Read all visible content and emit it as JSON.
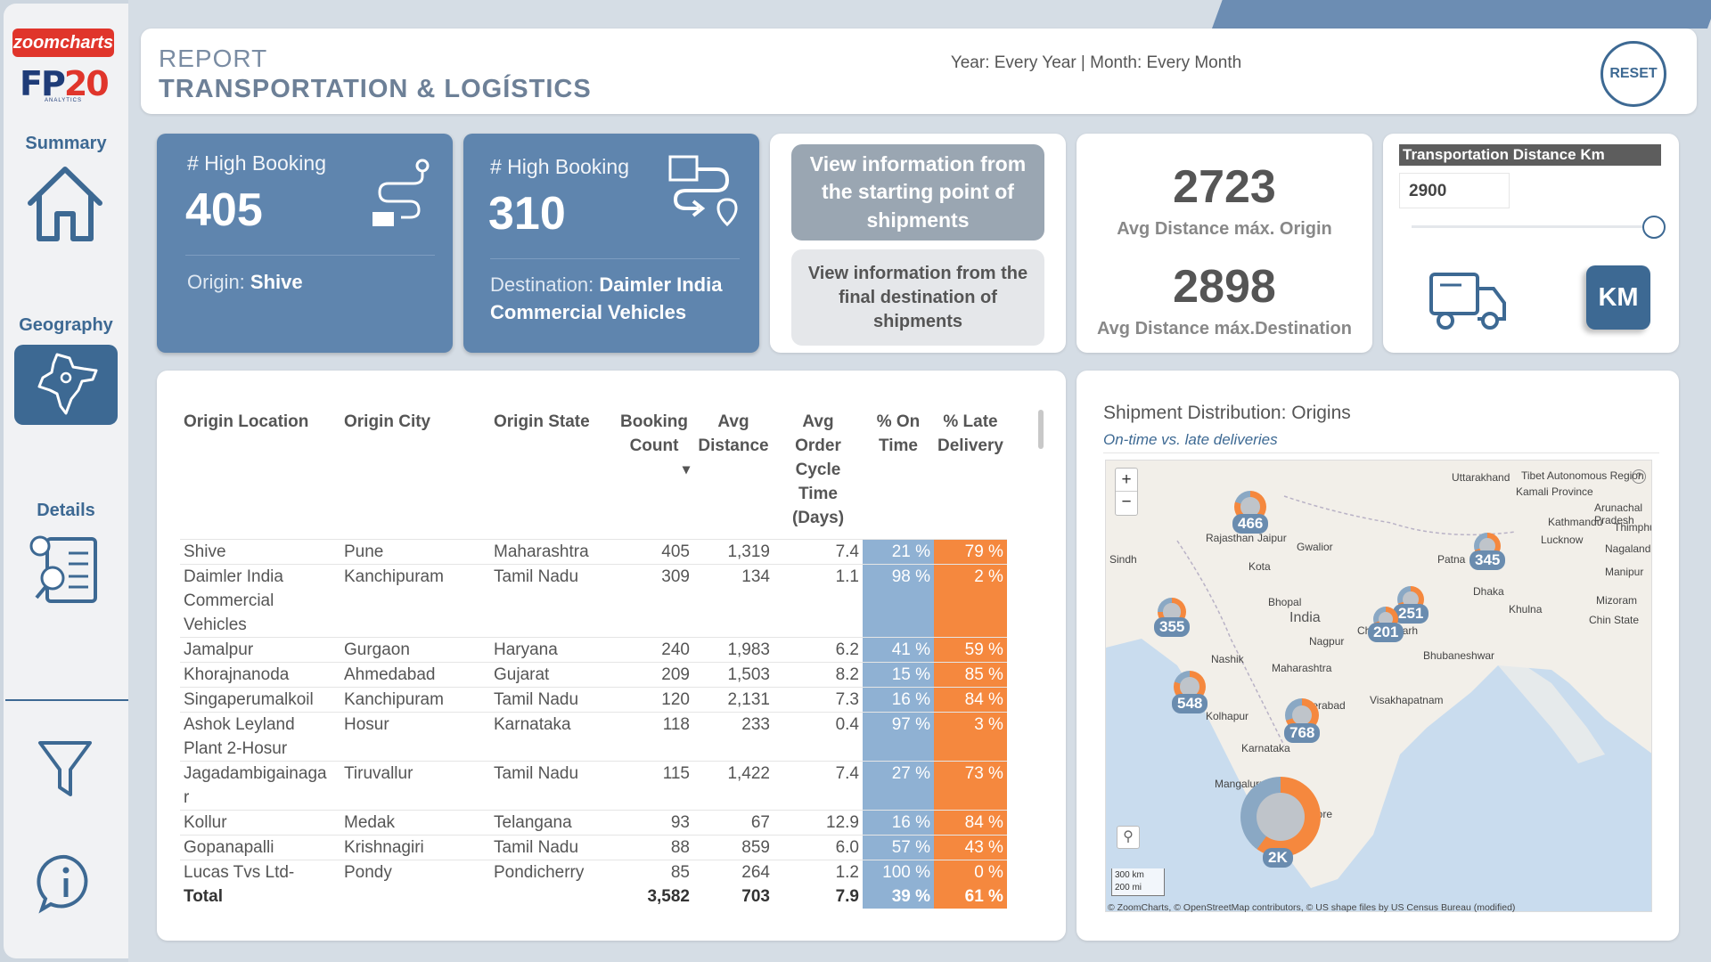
{
  "brand": {
    "logo_top": "zoomcharts",
    "logo_fp": "FP",
    "logo_20": "20",
    "logo_small": "ANALYTICS"
  },
  "sidebar": {
    "items": [
      {
        "label": "Summary",
        "icon": "home-icon"
      },
      {
        "label": "Geography",
        "icon": "india-map-icon"
      },
      {
        "label": "Details",
        "icon": "details-icon"
      }
    ],
    "filter_icon": "filter-icon",
    "info_icon": "info-icon"
  },
  "header": {
    "report_label": "REPORT",
    "title": "TRANSPORTATION & LOGÍSTICS",
    "filters": "Year: Every Year | Month: Every Month",
    "reset_label": "RESET"
  },
  "kpi1": {
    "label": "# High Booking",
    "value": "405",
    "sub_label": "Origin:",
    "sub_value": "Shive"
  },
  "kpi2": {
    "label": "# High Booking",
    "value": "310",
    "sub_label": "Destination:",
    "sub_value": "Daimler India Commercial Vehicles"
  },
  "view_buttons": {
    "origin": "View information from the starting point of shipments",
    "destination": "View information from the final destination of shipments"
  },
  "distance": {
    "origin_value": "2723",
    "origin_caption": "Avg Distance máx. Origin",
    "dest_value": "2898",
    "dest_caption": "Avg Distance máx.Destination"
  },
  "slider": {
    "title": "Transportation Distance Km",
    "value": "2900",
    "level": 1.0,
    "km_label": "KM"
  },
  "table": {
    "headers": [
      "Origin Location",
      "Origin City",
      "Origin State",
      "Booking Count",
      "Avg Distance",
      "Avg Order Cycle Time (Days)",
      "% On Time",
      "% Late Delivery"
    ],
    "rows": [
      [
        "Shive",
        "Pune",
        "Maharashtra",
        "405",
        "1,319",
        "7.4",
        "21 %",
        "79 %"
      ],
      [
        "Daimler India Commercial Vehicles",
        "Kanchipuram",
        "Tamil Nadu",
        "309",
        "134",
        "1.1",
        "98 %",
        "2 %"
      ],
      [
        "Jamalpur",
        "Gurgaon",
        "Haryana",
        "240",
        "1,983",
        "6.2",
        "41 %",
        "59 %"
      ],
      [
        "Khorajnanoda",
        "Ahmedabad",
        "Gujarat",
        "209",
        "1,503",
        "8.2",
        "15 %",
        "85 %"
      ],
      [
        "Singaperumalkoil",
        "Kanchipuram",
        "Tamil Nadu",
        "120",
        "2,131",
        "7.3",
        "16 %",
        "84 %"
      ],
      [
        "Ashok Leyland Plant 2-Hosur",
        "Hosur",
        "Karnataka",
        "118",
        "233",
        "0.4",
        "97 %",
        "3 %"
      ],
      [
        "Jagadambigainaga r",
        "Tiruvallur",
        "Tamil Nadu",
        "115",
        "1,422",
        "7.4",
        "27 %",
        "73 %"
      ],
      [
        "Kollur",
        "Medak",
        "Telangana",
        "93",
        "67",
        "12.9",
        "16 %",
        "84 %"
      ],
      [
        "Gopanapalli",
        "Krishnagiri",
        "Tamil Nadu",
        "88",
        "859",
        "6.0",
        "57 %",
        "43 %"
      ],
      [
        "Lucas Tvs Ltd-",
        "Pondy",
        "Pondicherry",
        "85",
        "264",
        "1.2",
        "100 %",
        "0 %"
      ]
    ],
    "total": [
      "Total",
      "",
      "",
      "3,582",
      "703",
      "7.9",
      "39 %",
      "61 %"
    ]
  },
  "map": {
    "title": "Shipment Distribution: Origins",
    "subtitle": "On-time vs. late deliveries",
    "zoom_in": "+",
    "zoom_out": "−",
    "scale_km": "300 km",
    "scale_mi": "200 mi",
    "attribution": "© ZoomCharts, © OpenStreetMap contributors, © US shape files by US Census Bureau (modified)",
    "bubbles": [
      {
        "label": "466",
        "late": 0.8
      },
      {
        "label": "345",
        "late": 0.7
      },
      {
        "label": "355",
        "late": 0.75
      },
      {
        "label": "251",
        "late": 0.7
      },
      {
        "label": "201",
        "late": 0.7
      },
      {
        "label": "548",
        "late": 0.8
      },
      {
        "label": "768",
        "late": 0.7
      },
      {
        "label": "2K",
        "late": 0.6
      }
    ],
    "cities": [
      "Uttarakhand",
      "Kamali Province",
      "Kathmandu",
      "Thimphu",
      "Lucknow",
      "Gwalior",
      "Jaipur",
      "Rajasthan",
      "Kota",
      "Patna",
      "Dhaka",
      "Khulna",
      "Bhopal",
      "India",
      "Nagpur",
      "Chhattisgarh",
      "Bhubaneshwar",
      "Nashik",
      "Maharashtra",
      "Kolhapur",
      "Hyderabad",
      "Visakhapatnam",
      "Karnataka",
      "Mangaluru",
      "Coimbatore",
      "Sindh",
      "Nagaland",
      "Manipur",
      "Mizoram",
      "Chin State",
      "Arunachal Pradesh",
      "Tibet Autonomous Region"
    ]
  }
}
